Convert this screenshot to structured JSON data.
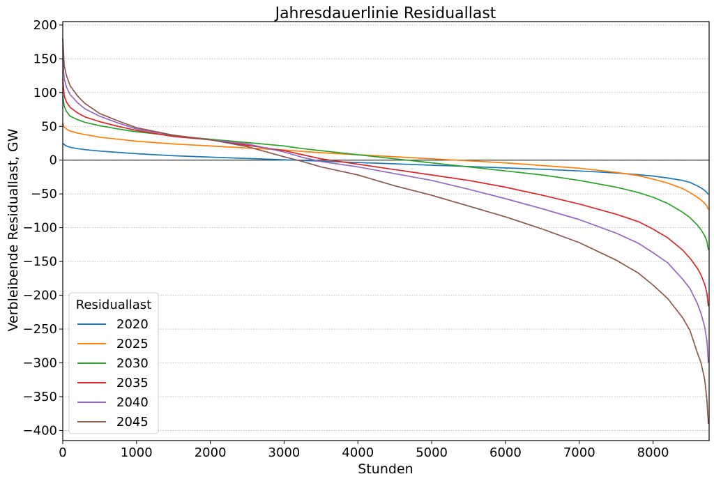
{
  "chart_data": {
    "type": "line",
    "title": "Jahresdauerlinie Residuallast",
    "xlabel": "Stunden",
    "ylabel": "Verbleibende Residuallast, GW",
    "xlim": [
      0,
      8760
    ],
    "ylim": [
      -415,
      205
    ],
    "xticks": [
      0,
      1000,
      2000,
      3000,
      4000,
      5000,
      6000,
      7000,
      8000
    ],
    "yticks": [
      200,
      150,
      100,
      50,
      0,
      -50,
      -100,
      -150,
      -200,
      -250,
      -300,
      -350,
      -400
    ],
    "ytick_labels": [
      "200",
      "150",
      "100",
      "50",
      "0",
      "−50",
      "−100",
      "−150",
      "−200",
      "−250",
      "−300",
      "−350",
      "−400"
    ],
    "grid": "horizontal dotted",
    "zero_line": true,
    "legend": {
      "title": "Residuallast",
      "position": "lower-left"
    },
    "x": [
      0,
      20,
      50,
      100,
      200,
      300,
      500,
      750,
      1000,
      1500,
      2000,
      2500,
      3000,
      3250,
      3500,
      4000,
      4500,
      5000,
      5500,
      6000,
      6500,
      7000,
      7500,
      7800,
      8000,
      8200,
      8400,
      8500,
      8600,
      8650,
      8700,
      8730,
      8750
    ],
    "series": [
      {
        "name": "2020",
        "color": "#1f77b4",
        "values": [
          25,
          23,
          21,
          19,
          17,
          15.5,
          13.5,
          11.5,
          9.5,
          6.5,
          4.5,
          2.5,
          0.5,
          -0.5,
          -1.5,
          -3.5,
          -5.5,
          -7.5,
          -9.5,
          -11.5,
          -13.5,
          -16,
          -19,
          -21.5,
          -23.5,
          -26.5,
          -30,
          -33,
          -38,
          -41,
          -45,
          -48,
          -51
        ]
      },
      {
        "name": "2025",
        "color": "#ff7f0e",
        "values": [
          55,
          49,
          46,
          43,
          40,
          38,
          34,
          31,
          28,
          24,
          21,
          18,
          15,
          13,
          11,
          8,
          5,
          2,
          -1,
          -4,
          -8,
          -12,
          -18,
          -23,
          -28,
          -34,
          -42,
          -48,
          -55,
          -59,
          -64,
          -68,
          -73
        ]
      },
      {
        "name": "2030",
        "color": "#2ca02c",
        "values": [
          95,
          80,
          72,
          65,
          60,
          56,
          51,
          46,
          42,
          36,
          31,
          26,
          21,
          17,
          14,
          8,
          2,
          -4,
          -10,
          -16,
          -22,
          -30,
          -40,
          -48,
          -55,
          -64,
          -77,
          -85,
          -96,
          -103,
          -112,
          -120,
          -133
        ]
      },
      {
        "name": "2035",
        "color": "#d62728",
        "values": [
          120,
          95,
          86,
          78,
          70,
          64,
          57,
          50,
          44,
          35,
          30,
          22,
          14,
          8,
          2,
          -6,
          -14,
          -22,
          -30,
          -40,
          -52,
          -65,
          -80,
          -91,
          -102,
          -115,
          -133,
          -145,
          -160,
          -170,
          -184,
          -197,
          -216
        ]
      },
      {
        "name": "2040",
        "color": "#9467bd",
        "values": [
          150,
          120,
          108,
          97,
          85,
          76,
          65,
          55,
          46,
          37,
          30,
          24,
          12,
          4,
          -2,
          -10,
          -20,
          -30,
          -43,
          -57,
          -72,
          -88,
          -108,
          -123,
          -137,
          -152,
          -176,
          -190,
          -212,
          -227,
          -247,
          -267,
          -300
        ]
      },
      {
        "name": "2045",
        "color": "#8c564b",
        "values": [
          180,
          140,
          125,
          110,
          95,
          84,
          69,
          58,
          48,
          37,
          30,
          20,
          5,
          -2,
          -10,
          -22,
          -38,
          -52,
          -68,
          -84,
          -102,
          -122,
          -148,
          -167,
          -185,
          -205,
          -233,
          -252,
          -285,
          -300,
          -325,
          -355,
          -390
        ]
      }
    ]
  }
}
